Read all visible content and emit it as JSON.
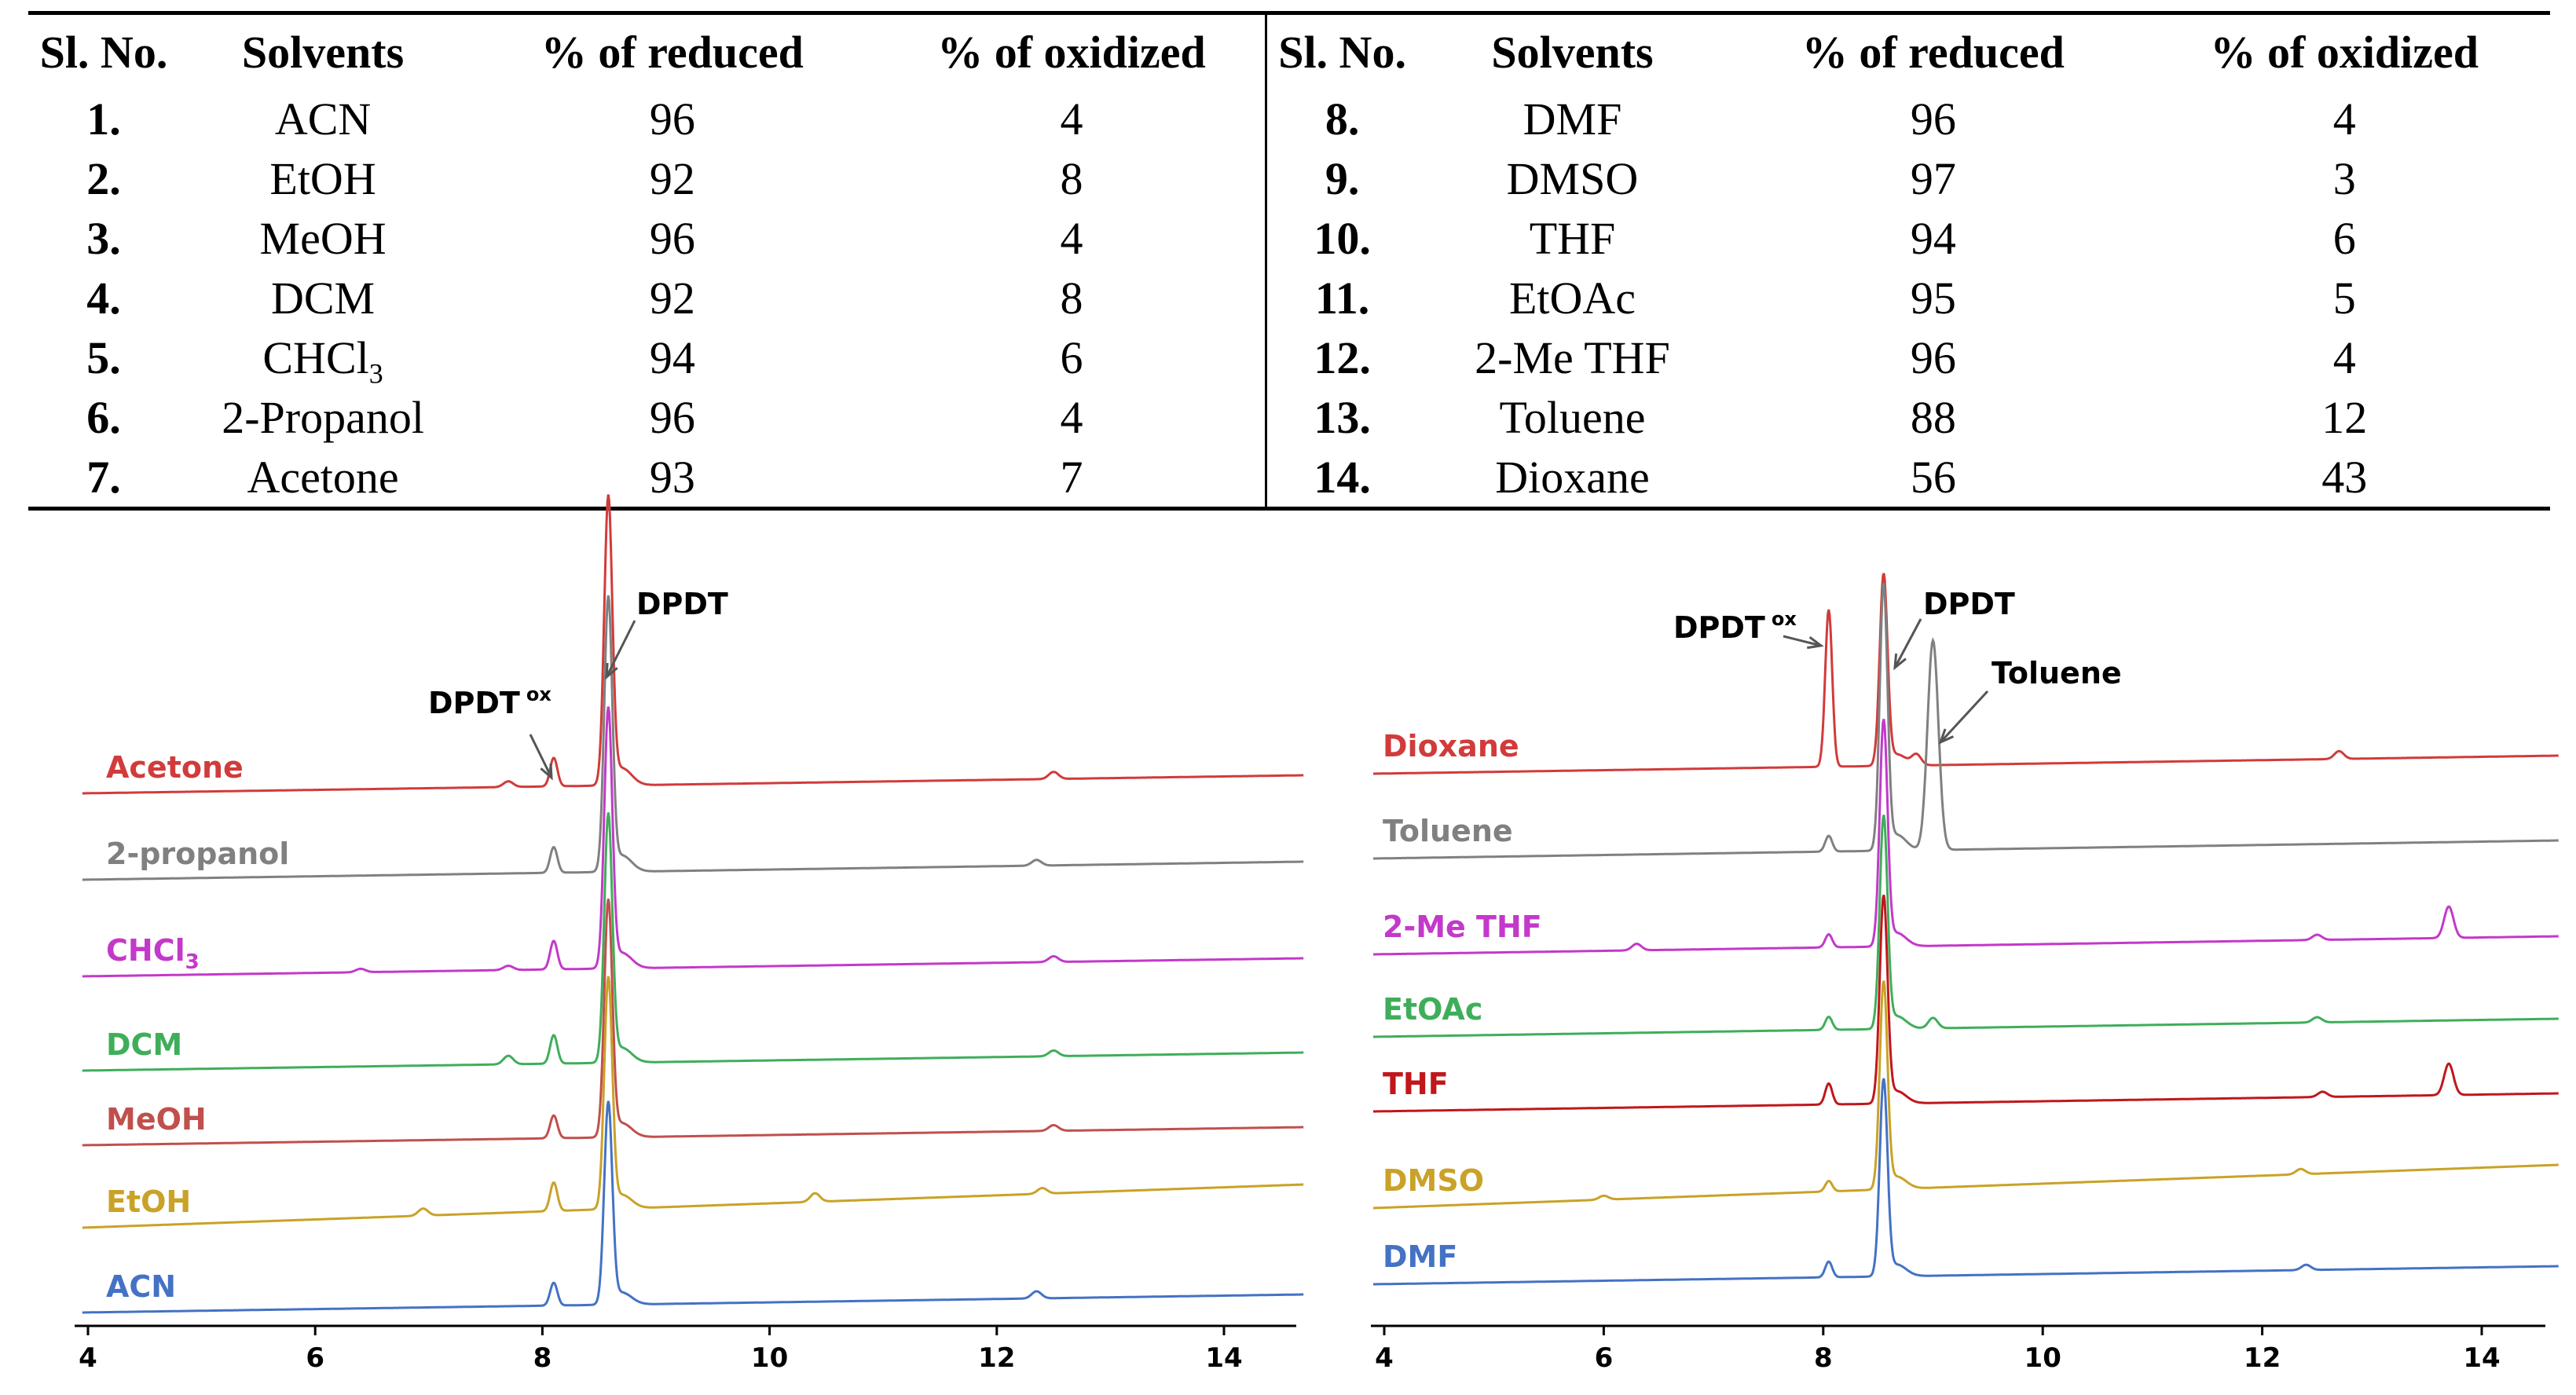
{
  "table": {
    "headers": [
      "Sl. No.",
      "Solvents",
      "% of reduced",
      "% of oxidized"
    ],
    "left_rows": [
      {
        "no": "1.",
        "solvent": "ACN",
        "sub": "",
        "reduced": "96",
        "oxidized": "4"
      },
      {
        "no": "2.",
        "solvent": "EtOH",
        "sub": "",
        "reduced": "92",
        "oxidized": "8"
      },
      {
        "no": "3.",
        "solvent": "MeOH",
        "sub": "",
        "reduced": "96",
        "oxidized": "4"
      },
      {
        "no": "4.",
        "solvent": "DCM",
        "sub": "",
        "reduced": "92",
        "oxidized": "8"
      },
      {
        "no": "5.",
        "solvent": "CHCl",
        "sub": "3",
        "reduced": "94",
        "oxidized": "6"
      },
      {
        "no": "6.",
        "solvent": "2-Propanol",
        "sub": "",
        "reduced": "96",
        "oxidized": "4"
      },
      {
        "no": "7.",
        "solvent": "Acetone",
        "sub": "",
        "reduced": "93",
        "oxidized": "7"
      }
    ],
    "right_rows": [
      {
        "no": "8.",
        "solvent": "DMF",
        "sub": "",
        "reduced": "96",
        "oxidized": "4"
      },
      {
        "no": "9.",
        "solvent": "DMSO",
        "sub": "",
        "reduced": "97",
        "oxidized": "3"
      },
      {
        "no": "10.",
        "solvent": "THF",
        "sub": "",
        "reduced": "94",
        "oxidized": "6"
      },
      {
        "no": "11.",
        "solvent": "EtOAc",
        "sub": "",
        "reduced": "95",
        "oxidized": "5"
      },
      {
        "no": "12.",
        "solvent": "2-Me THF",
        "sub": "",
        "reduced": "96",
        "oxidized": "4"
      },
      {
        "no": "13.",
        "solvent": "Toluene",
        "sub": "",
        "reduced": "88",
        "oxidized": "12"
      },
      {
        "no": "14.",
        "solvent": "Dioxane",
        "sub": "",
        "reduced": "56",
        "oxidized": "43"
      }
    ]
  },
  "chart_data": [
    {
      "type": "line",
      "title": "",
      "xlabel": "",
      "ylabel": "",
      "xlim": [
        3.95,
        14.7
      ],
      "xticks": [
        4,
        6,
        8,
        10,
        12,
        14
      ],
      "annotations": [
        {
          "text": "DPDT",
          "superscript": "ox",
          "peak_x": 8.1
        },
        {
          "text": "DPDT",
          "superscript": "",
          "peak_x": 8.58
        }
      ],
      "series": [
        {
          "name": "Acetone",
          "sub": "",
          "color": "#d13b3b",
          "ox_peak": 0.1,
          "red_peak": 1.0,
          "bumps": [
            [
              7.7,
              0.02
            ],
            [
              12.5,
              0.025
            ]
          ]
        },
        {
          "name": "2-propanol",
          "sub": "",
          "color": "#808080",
          "ox_peak": 0.09,
          "red_peak": 0.95,
          "bumps": [
            [
              12.35,
              0.02
            ]
          ]
        },
        {
          "name": "CHCl",
          "sub": "3",
          "color": "#c339c9",
          "ox_peak": 0.1,
          "red_peak": 0.9,
          "bumps": [
            [
              6.4,
              0.012
            ],
            [
              7.7,
              0.015
            ],
            [
              12.5,
              0.02
            ]
          ]
        },
        {
          "name": "DCM",
          "sub": "",
          "color": "#3fae5a",
          "ox_peak": 0.1,
          "red_peak": 0.86,
          "bumps": [
            [
              7.7,
              0.03
            ],
            [
              12.5,
              0.02
            ]
          ]
        },
        {
          "name": "MeOH",
          "sub": "",
          "color": "#c0504d",
          "ox_peak": 0.08,
          "red_peak": 0.82,
          "bumps": [
            [
              12.5,
              0.02
            ]
          ]
        },
        {
          "name": "EtOH",
          "sub": "",
          "color": "#c9a227",
          "ox_peak": 0.1,
          "red_peak": 0.8,
          "bumps": [
            [
              6.95,
              0.025
            ],
            [
              10.4,
              0.03
            ],
            [
              12.4,
              0.02
            ]
          ]
        },
        {
          "name": "ACN",
          "sub": "",
          "color": "#4472c4",
          "ox_peak": 0.08,
          "red_peak": 0.7,
          "bumps": [
            [
              12.35,
              0.025
            ]
          ]
        }
      ]
    },
    {
      "type": "line",
      "title": "",
      "xlabel": "",
      "ylabel": "",
      "xlim": [
        3.9,
        14.7
      ],
      "xticks": [
        4,
        6,
        8,
        10,
        12,
        14
      ],
      "annotations": [
        {
          "text": "DPDT",
          "superscript": "ox",
          "peak_x": 8.05
        },
        {
          "text": "DPDT",
          "superscript": "",
          "peak_x": 8.55
        },
        {
          "text": "Toluene",
          "superscript": "",
          "peak_x": 9.0
        }
      ],
      "series": [
        {
          "name": "Dioxane",
          "sub": "",
          "color": "#d13b3b",
          "ox_peak": 0.6,
          "red_peak": 0.72,
          "bumps": [
            [
              8.85,
              0.04
            ],
            [
              12.7,
              0.03
            ]
          ]
        },
        {
          "name": "Toluene",
          "sub": "",
          "color": "#808080",
          "ox_peak": 0.06,
          "red_peak": 1.0,
          "bumps": [
            [
              9.0,
              0.8
            ]
          ]
        },
        {
          "name": "2-Me THF",
          "sub": "",
          "color": "#c339c9",
          "ox_peak": 0.05,
          "red_peak": 0.85,
          "bumps": [
            [
              6.3,
              0.025
            ],
            [
              12.5,
              0.02
            ],
            [
              13.7,
              0.12
            ]
          ]
        },
        {
          "name": "EtOAc",
          "sub": "",
          "color": "#3fae5a",
          "ox_peak": 0.05,
          "red_peak": 0.8,
          "bumps": [
            [
              9.0,
              0.04
            ],
            [
              12.5,
              0.02
            ]
          ]
        },
        {
          "name": "THF",
          "sub": "",
          "color": "#c0171c",
          "ox_peak": 0.08,
          "red_peak": 0.78,
          "bumps": [
            [
              12.55,
              0.02
            ],
            [
              13.7,
              0.12
            ]
          ]
        },
        {
          "name": "DMSO",
          "sub": "",
          "color": "#c9a227",
          "ox_peak": 0.04,
          "red_peak": 0.78,
          "bumps": [
            [
              6.0,
              0.015
            ],
            [
              12.35,
              0.02
            ]
          ]
        },
        {
          "name": "DMF",
          "sub": "",
          "color": "#4472c4",
          "ox_peak": 0.06,
          "red_peak": 0.74,
          "bumps": [
            [
              12.4,
              0.02
            ]
          ]
        }
      ]
    }
  ]
}
